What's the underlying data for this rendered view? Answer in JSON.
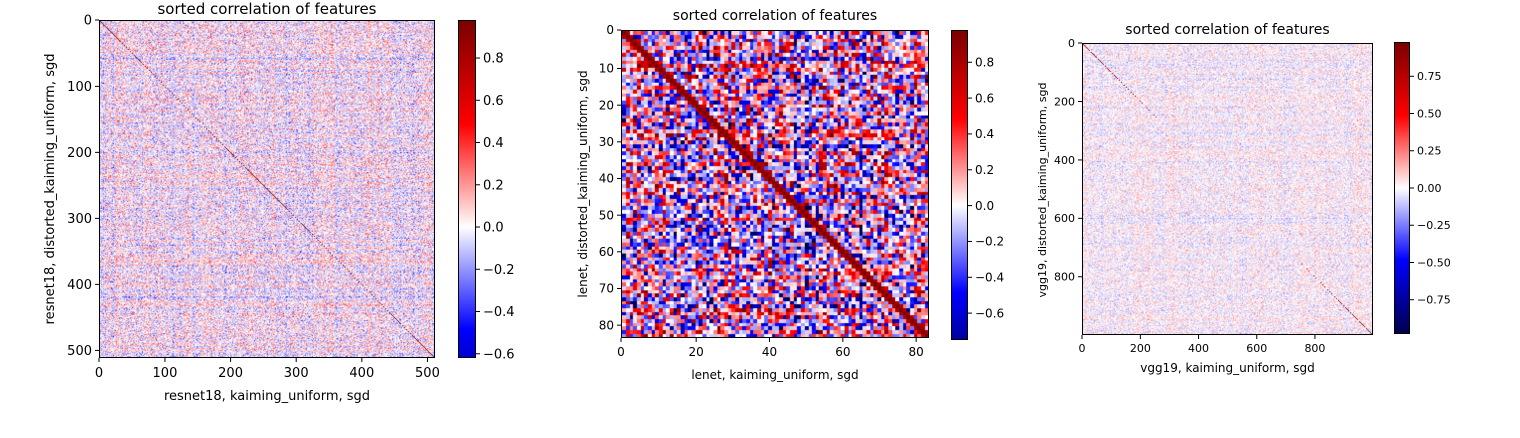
{
  "chart_data": [
    {
      "type": "heatmap",
      "title": "sorted correlation of features",
      "xlabel": "resnet18, kaiming_uniform, sgd",
      "ylabel": "resnet18, distorted_kaiming_uniform, sgd",
      "n": 512,
      "xticks": [
        0,
        100,
        200,
        300,
        400,
        500
      ],
      "yticks": [
        0,
        100,
        200,
        300,
        400,
        500
      ],
      "colorbar": {
        "cmap": "seismic",
        "range": [
          -0.62,
          0.98
        ],
        "ticks": [
          "0.8",
          "0.6",
          "0.4",
          "0.2",
          "0.0",
          "−0.2",
          "−0.4",
          "−0.6"
        ],
        "values": [
          0.8,
          0.6,
          0.4,
          0.2,
          0.0,
          -0.2,
          -0.4,
          -0.6
        ]
      },
      "diagonal": 1.0,
      "offdiag_spread": 0.18
    },
    {
      "type": "heatmap",
      "title": "sorted correlation of features",
      "xlabel": "lenet, kaiming_uniform, sgd",
      "ylabel": "lenet, distorted_kaiming_uniform, sgd",
      "n": 84,
      "xticks": [
        0,
        20,
        40,
        60,
        80
      ],
      "yticks": [
        0,
        10,
        20,
        30,
        40,
        50,
        60,
        70,
        80
      ],
      "colorbar": {
        "cmap": "seismic",
        "range": [
          -0.75,
          0.98
        ],
        "ticks": [
          "0.8",
          "0.6",
          "0.4",
          "0.2",
          "0.0",
          "−0.2",
          "−0.4",
          "−0.6"
        ],
        "values": [
          0.8,
          0.6,
          0.4,
          0.2,
          0.0,
          -0.2,
          -0.4,
          -0.6
        ]
      },
      "diagonal": 1.0,
      "offdiag_spread": 0.55
    },
    {
      "type": "heatmap",
      "title": "sorted correlation of features",
      "xlabel": "vgg19, kaiming_uniform, sgd",
      "ylabel": "vgg19, distorted_kaiming_uniform, sgd",
      "n": 1000,
      "xticks": [
        0,
        200,
        400,
        600,
        800
      ],
      "yticks": [
        0,
        200,
        400,
        600,
        800
      ],
      "colorbar": {
        "cmap": "seismic",
        "range": [
          -0.98,
          0.98
        ],
        "ticks": [
          "0.75",
          "0.50",
          "0.25",
          "0.00",
          "−0.25",
          "−0.50",
          "−0.75"
        ],
        "values": [
          0.75,
          0.5,
          0.25,
          0.0,
          -0.25,
          -0.5,
          -0.75
        ]
      },
      "diagonal": 0.9,
      "offdiag_spread": 0.1
    }
  ]
}
